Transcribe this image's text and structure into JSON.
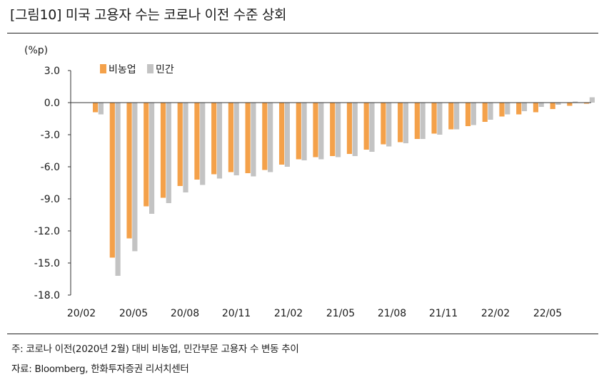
{
  "title": "[그림10]   미국 고용자 수는 코로나 이전 수준 상회",
  "unit_label": "(%p)",
  "note": "주: 코로나 이전(2020년 2월) 대비 비농업, 민간부문 고용자 수 변동 추이",
  "source": "자료: Bloomberg, 한화투자증권 리서치센터",
  "colors": {
    "nonfarm": "#f4a14a",
    "private": "#c3c3c3"
  },
  "chart_data": {
    "type": "bar",
    "ylim": [
      -18,
      3
    ],
    "yticks": [
      3.0,
      0.0,
      -3.0,
      -6.0,
      -9.0,
      -12.0,
      -15.0,
      -18.0
    ],
    "ytick_labels": [
      "3.0",
      "0.0",
      "-3.0",
      "-6.0",
      "-9.0",
      "-12.0",
      "-15.0",
      "-18.0"
    ],
    "xtick_labels": [
      "20/02",
      "20/05",
      "20/08",
      "20/11",
      "21/02",
      "21/05",
      "21/08",
      "21/11",
      "22/02",
      "22/05"
    ],
    "categories": [
      "20/02",
      "20/03",
      "20/04",
      "20/05",
      "20/06",
      "20/07",
      "20/08",
      "20/09",
      "20/10",
      "20/11",
      "20/12",
      "21/01",
      "21/02",
      "21/03",
      "21/04",
      "21/05",
      "21/06",
      "21/07",
      "21/08",
      "21/09",
      "21/10",
      "21/11",
      "21/12",
      "22/01",
      "22/02",
      "22/03",
      "22/04",
      "22/05",
      "22/06",
      "22/07"
    ],
    "legend_position": "top-left",
    "series": [
      {
        "name": "비농업",
        "color": "#f4a14a",
        "values": [
          -0.9,
          -14.5,
          -12.7,
          -9.7,
          -8.9,
          -7.8,
          -7.2,
          -6.7,
          -6.5,
          -6.6,
          -6.3,
          -5.8,
          -5.3,
          -5.1,
          -5.0,
          -4.8,
          -4.4,
          -3.9,
          -3.7,
          -3.4,
          -2.9,
          -2.5,
          -2.2,
          -1.8,
          -1.3,
          -1.1,
          -0.9,
          -0.6,
          -0.3,
          -0.1
        ]
      },
      {
        "name": "민간",
        "color": "#c3c3c3",
        "values": [
          -1.1,
          -16.2,
          -13.9,
          -10.4,
          -9.4,
          -8.4,
          -7.7,
          -7.1,
          -6.8,
          -6.9,
          -6.5,
          -6.0,
          -5.4,
          -5.3,
          -5.1,
          -5.0,
          -4.6,
          -4.1,
          -3.8,
          -3.4,
          -3.0,
          -2.5,
          -2.1,
          -1.6,
          -1.1,
          -0.8,
          -0.4,
          -0.2,
          0.1,
          0.5
        ]
      }
    ]
  }
}
